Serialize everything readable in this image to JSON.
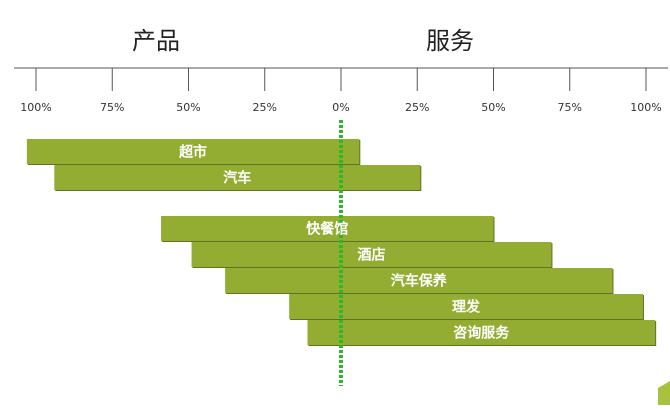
{
  "chart_data": {
    "type": "bar",
    "orientation": "horizontal",
    "layout": "diverging",
    "headers": {
      "left": "产品",
      "right": "服务"
    },
    "tick_labels": [
      "100%",
      "75%",
      "50%",
      "25%",
      "0%",
      "25%",
      "50%",
      "75%",
      "100%"
    ],
    "xlim": [
      -100,
      100
    ],
    "grid": false,
    "legend": "none",
    "categories": [
      "超市",
      "汽车",
      "快餐馆",
      "酒店",
      "汽车保养",
      "理发",
      "咨询服务"
    ],
    "product_share": [
      103,
      94,
      59,
      49,
      38,
      17,
      11
    ],
    "service_share": [
      6,
      26,
      50,
      69,
      89,
      99,
      103
    ],
    "groups": [
      [
        "超市",
        "汽车"
      ],
      [
        "快餐馆",
        "酒店",
        "汽车保养",
        "理发",
        "咨询服务"
      ]
    ],
    "colors": {
      "bar": "#93ad33",
      "bar_shadow": "#5f7320",
      "zero_line": "#2bb82b",
      "axis": "#555555"
    }
  }
}
